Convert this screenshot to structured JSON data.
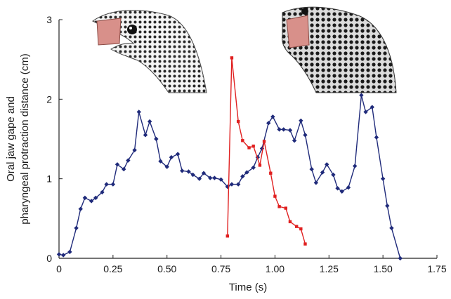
{
  "chart_data": {
    "type": "line",
    "xlabel": "Time (s)",
    "ylabel_line1": "Oral jaw gape and",
    "ylabel_line2": "pharyngeal protraction distance (cm)",
    "xlim": [
      0,
      1.75
    ],
    "ylim": [
      0,
      3
    ],
    "xticks": [
      0,
      0.25,
      0.5,
      0.75,
      1.0,
      1.25,
      1.5,
      1.75
    ],
    "xtick_labels": [
      "0",
      "0.25",
      "0.50",
      "0.75",
      "1.00",
      "1.25",
      "1.50",
      "1.75"
    ],
    "yticks": [
      0,
      1,
      2,
      3
    ],
    "ytick_labels": [
      "0",
      "1",
      "2",
      "3"
    ],
    "grid": false,
    "legend": "none",
    "series": [
      {
        "color": "#1f2a7a",
        "marker": "diamond",
        "points": [
          [
            0.0,
            0.05
          ],
          [
            0.02,
            0.04
          ],
          [
            0.05,
            0.08
          ],
          [
            0.08,
            0.38
          ],
          [
            0.1,
            0.62
          ],
          [
            0.12,
            0.76
          ],
          [
            0.15,
            0.72
          ],
          [
            0.17,
            0.76
          ],
          [
            0.2,
            0.83
          ],
          [
            0.22,
            0.93
          ],
          [
            0.25,
            0.93
          ],
          [
            0.27,
            1.18
          ],
          [
            0.3,
            1.12
          ],
          [
            0.32,
            1.23
          ],
          [
            0.35,
            1.36
          ],
          [
            0.37,
            1.84
          ],
          [
            0.4,
            1.55
          ],
          [
            0.42,
            1.72
          ],
          [
            0.45,
            1.5
          ],
          [
            0.47,
            1.22
          ],
          [
            0.5,
            1.15
          ],
          [
            0.52,
            1.27
          ],
          [
            0.55,
            1.31
          ],
          [
            0.57,
            1.1
          ],
          [
            0.6,
            1.09
          ],
          [
            0.62,
            1.05
          ],
          [
            0.65,
            1.0
          ],
          [
            0.67,
            1.07
          ],
          [
            0.7,
            1.01
          ],
          [
            0.72,
            1.01
          ],
          [
            0.75,
            0.99
          ],
          [
            0.78,
            0.9
          ],
          [
            0.8,
            0.93
          ],
          [
            0.83,
            0.93
          ],
          [
            0.85,
            1.03
          ],
          [
            0.87,
            1.08
          ],
          [
            0.9,
            1.14
          ],
          [
            0.92,
            1.27
          ],
          [
            0.94,
            1.38
          ],
          [
            0.97,
            1.7
          ],
          [
            0.99,
            1.78
          ],
          [
            1.02,
            1.62
          ],
          [
            1.04,
            1.62
          ],
          [
            1.07,
            1.61
          ],
          [
            1.09,
            1.48
          ],
          [
            1.12,
            1.73
          ],
          [
            1.14,
            1.55
          ],
          [
            1.17,
            1.12
          ],
          [
            1.19,
            0.95
          ],
          [
            1.22,
            1.08
          ],
          [
            1.24,
            1.18
          ],
          [
            1.27,
            1.05
          ],
          [
            1.29,
            0.88
          ],
          [
            1.31,
            0.84
          ],
          [
            1.34,
            0.89
          ],
          [
            1.37,
            1.16
          ],
          [
            1.4,
            2.05
          ],
          [
            1.42,
            1.84
          ],
          [
            1.45,
            1.9
          ],
          [
            1.47,
            1.52
          ],
          [
            1.5,
            1.0
          ],
          [
            1.52,
            0.66
          ],
          [
            1.54,
            0.38
          ],
          [
            1.58,
            0.0
          ]
        ]
      },
      {
        "color": "#e02020",
        "marker": "square",
        "points": [
          [
            0.78,
            0.28
          ],
          [
            0.8,
            2.52
          ],
          [
            0.83,
            1.72
          ],
          [
            0.85,
            1.48
          ],
          [
            0.88,
            1.39
          ],
          [
            0.9,
            1.41
          ],
          [
            0.93,
            1.17
          ],
          [
            0.95,
            1.47
          ],
          [
            0.98,
            1.07
          ],
          [
            1.0,
            0.78
          ],
          [
            1.02,
            0.65
          ],
          [
            1.05,
            0.63
          ],
          [
            1.07,
            0.46
          ],
          [
            1.1,
            0.4
          ],
          [
            1.12,
            0.37
          ],
          [
            1.14,
            0.18
          ]
        ]
      }
    ]
  },
  "images": {
    "left_photo": "moray-eel-head-open-jaw",
    "right_photo": "moray-eel-head-pharyngeal-jaw"
  }
}
